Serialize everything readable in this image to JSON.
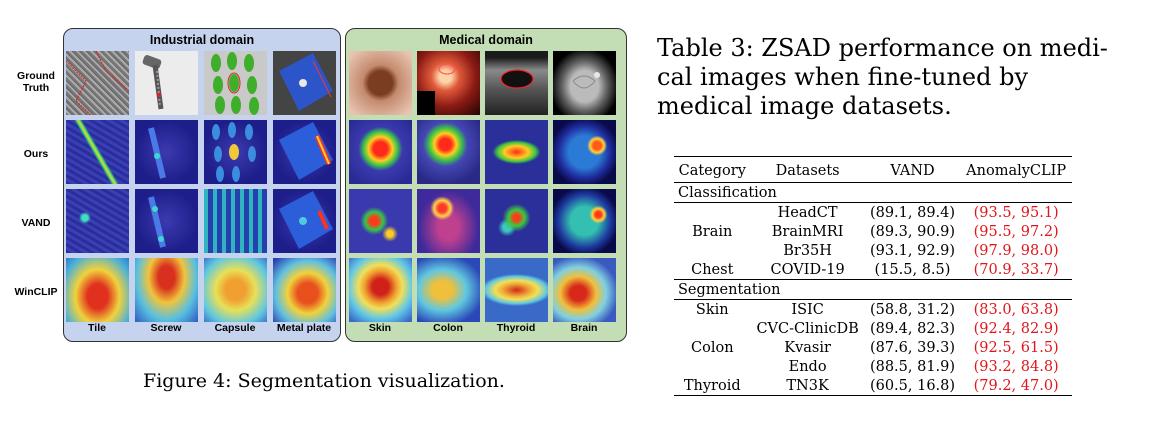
{
  "figure": {
    "industrial_title": "Industrial domain",
    "medical_title": "Medical domain",
    "row_labels": [
      "Ground\nTruth",
      "Ours",
      "VAND",
      "WinCLIP"
    ],
    "industrial_columns": [
      "Tile",
      "Screw",
      "Capsule",
      "Metal plate"
    ],
    "medical_columns": [
      "Skin",
      "Colon",
      "Thyroid",
      "Brain"
    ],
    "caption": "Figure 4: Segmentation visualization."
  },
  "table": {
    "caption": "Table 3: ZSAD performance on medi- cal images when fine-tuned by medical image datasets.",
    "headers": [
      "Category",
      "Datasets",
      "VAND",
      "AnomalyCLIP"
    ],
    "classification_label": "Classification",
    "segmentation_label": "Segmentation",
    "rows": [
      {
        "category": "",
        "dataset": "HeadCT",
        "vand": "(89.1, 89.4)",
        "anomalyclip": "(93.5, 95.1)"
      },
      {
        "category": "Brain",
        "dataset": "BrainMRI",
        "vand": "(89.3, 90.9)",
        "anomalyclip": "(95.5, 97.2)"
      },
      {
        "category": "",
        "dataset": "Br35H",
        "vand": "(93.1, 92.9)",
        "anomalyclip": "(97.9, 98.0)"
      },
      {
        "category": "Chest",
        "dataset": "COVID-19",
        "vand": "(15.5, 8.5)",
        "anomalyclip": "(70.9, 33.7)"
      },
      {
        "category": "Skin",
        "dataset": "ISIC",
        "vand": "(58.8, 31.2)",
        "anomalyclip": "(83.0, 63.8)"
      },
      {
        "category": "",
        "dataset": "CVC-ClinicDB",
        "vand": "(89.4, 82.3)",
        "anomalyclip": "(92.4, 82.9)"
      },
      {
        "category": "Colon",
        "dataset": "Kvasir",
        "vand": "(87.6, 39.3)",
        "anomalyclip": "(92.5, 61.5)"
      },
      {
        "category": "",
        "dataset": "Endo",
        "vand": "(88.5, 81.9)",
        "anomalyclip": "(93.2, 84.8)"
      },
      {
        "category": "Thyroid",
        "dataset": "TN3K",
        "vand": "(60.5, 16.8)",
        "anomalyclip": "(79.2, 47.0)"
      }
    ]
  }
}
